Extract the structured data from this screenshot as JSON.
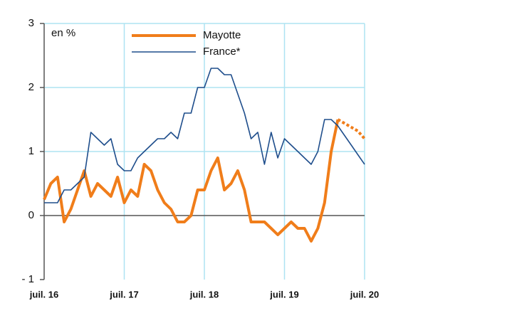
{
  "chart_data": {
    "type": "line",
    "annotation": "en %",
    "categories": [
      "juil. 16",
      null,
      null,
      null,
      null,
      null,
      null,
      null,
      null,
      null,
      null,
      null,
      "juil. 17",
      null,
      null,
      null,
      null,
      null,
      null,
      null,
      null,
      null,
      null,
      null,
      "juil. 18",
      null,
      null,
      null,
      null,
      null,
      null,
      null,
      null,
      null,
      null,
      null,
      "juil. 19",
      null,
      null,
      null,
      null,
      null,
      null,
      null,
      null,
      null,
      null,
      null,
      "juil. 20"
    ],
    "series": [
      {
        "name": "Mayotte",
        "color": "#f07d1a",
        "width": 4,
        "values": [
          0.25,
          0.5,
          0.6,
          -0.1,
          0.1,
          0.4,
          0.7,
          0.3,
          0.5,
          0.4,
          0.3,
          0.6,
          0.2,
          0.4,
          0.3,
          0.8,
          0.7,
          0.4,
          0.2,
          0.1,
          -0.1,
          -0.1,
          0,
          0.4,
          0.4,
          0.7,
          0.9,
          0.4,
          0.5,
          0.7,
          0.4,
          -0.1,
          -0.1,
          -0.1,
          -0.2,
          -0.3,
          -0.2,
          -0.1,
          -0.2,
          -0.2,
          -0.4,
          -0.2,
          0.2,
          1.0,
          1.5,
          null,
          null,
          null,
          null
        ]
      },
      {
        "name": "France*",
        "color": "#1f4e8c",
        "width": 1.6,
        "values": [
          0.2,
          0.2,
          0.2,
          0.4,
          0.4,
          0.5,
          0.6,
          1.3,
          1.2,
          1.1,
          1.2,
          0.8,
          0.7,
          0.7,
          0.9,
          1.0,
          1.1,
          1.2,
          1.2,
          1.3,
          1.2,
          1.6,
          1.6,
          2.0,
          2.0,
          2.3,
          2.3,
          2.2,
          2.2,
          1.9,
          1.6,
          1.2,
          1.3,
          0.8,
          1.3,
          0.9,
          1.2,
          1.1,
          1.0,
          0.9,
          0.8,
          1.0,
          1.5,
          1.5,
          1.4,
          1.25,
          1.1,
          0.95,
          0.8
        ]
      },
      {
        "color": "#f07d1a",
        "width": 4,
        "dashed": true,
        "values": [
          null,
          null,
          null,
          null,
          null,
          null,
          null,
          null,
          null,
          null,
          null,
          null,
          null,
          null,
          null,
          null,
          null,
          null,
          null,
          null,
          null,
          null,
          null,
          null,
          null,
          null,
          null,
          null,
          null,
          null,
          null,
          null,
          null,
          null,
          null,
          null,
          null,
          null,
          null,
          null,
          null,
          null,
          null,
          null,
          1.5,
          1.44,
          1.38,
          1.32,
          1.2
        ]
      }
    ],
    "ylim": [
      -1,
      3
    ],
    "yticks": [
      {
        "value": -1,
        "label": "- 1"
      },
      0,
      1,
      2,
      3
    ],
    "grid": true
  }
}
